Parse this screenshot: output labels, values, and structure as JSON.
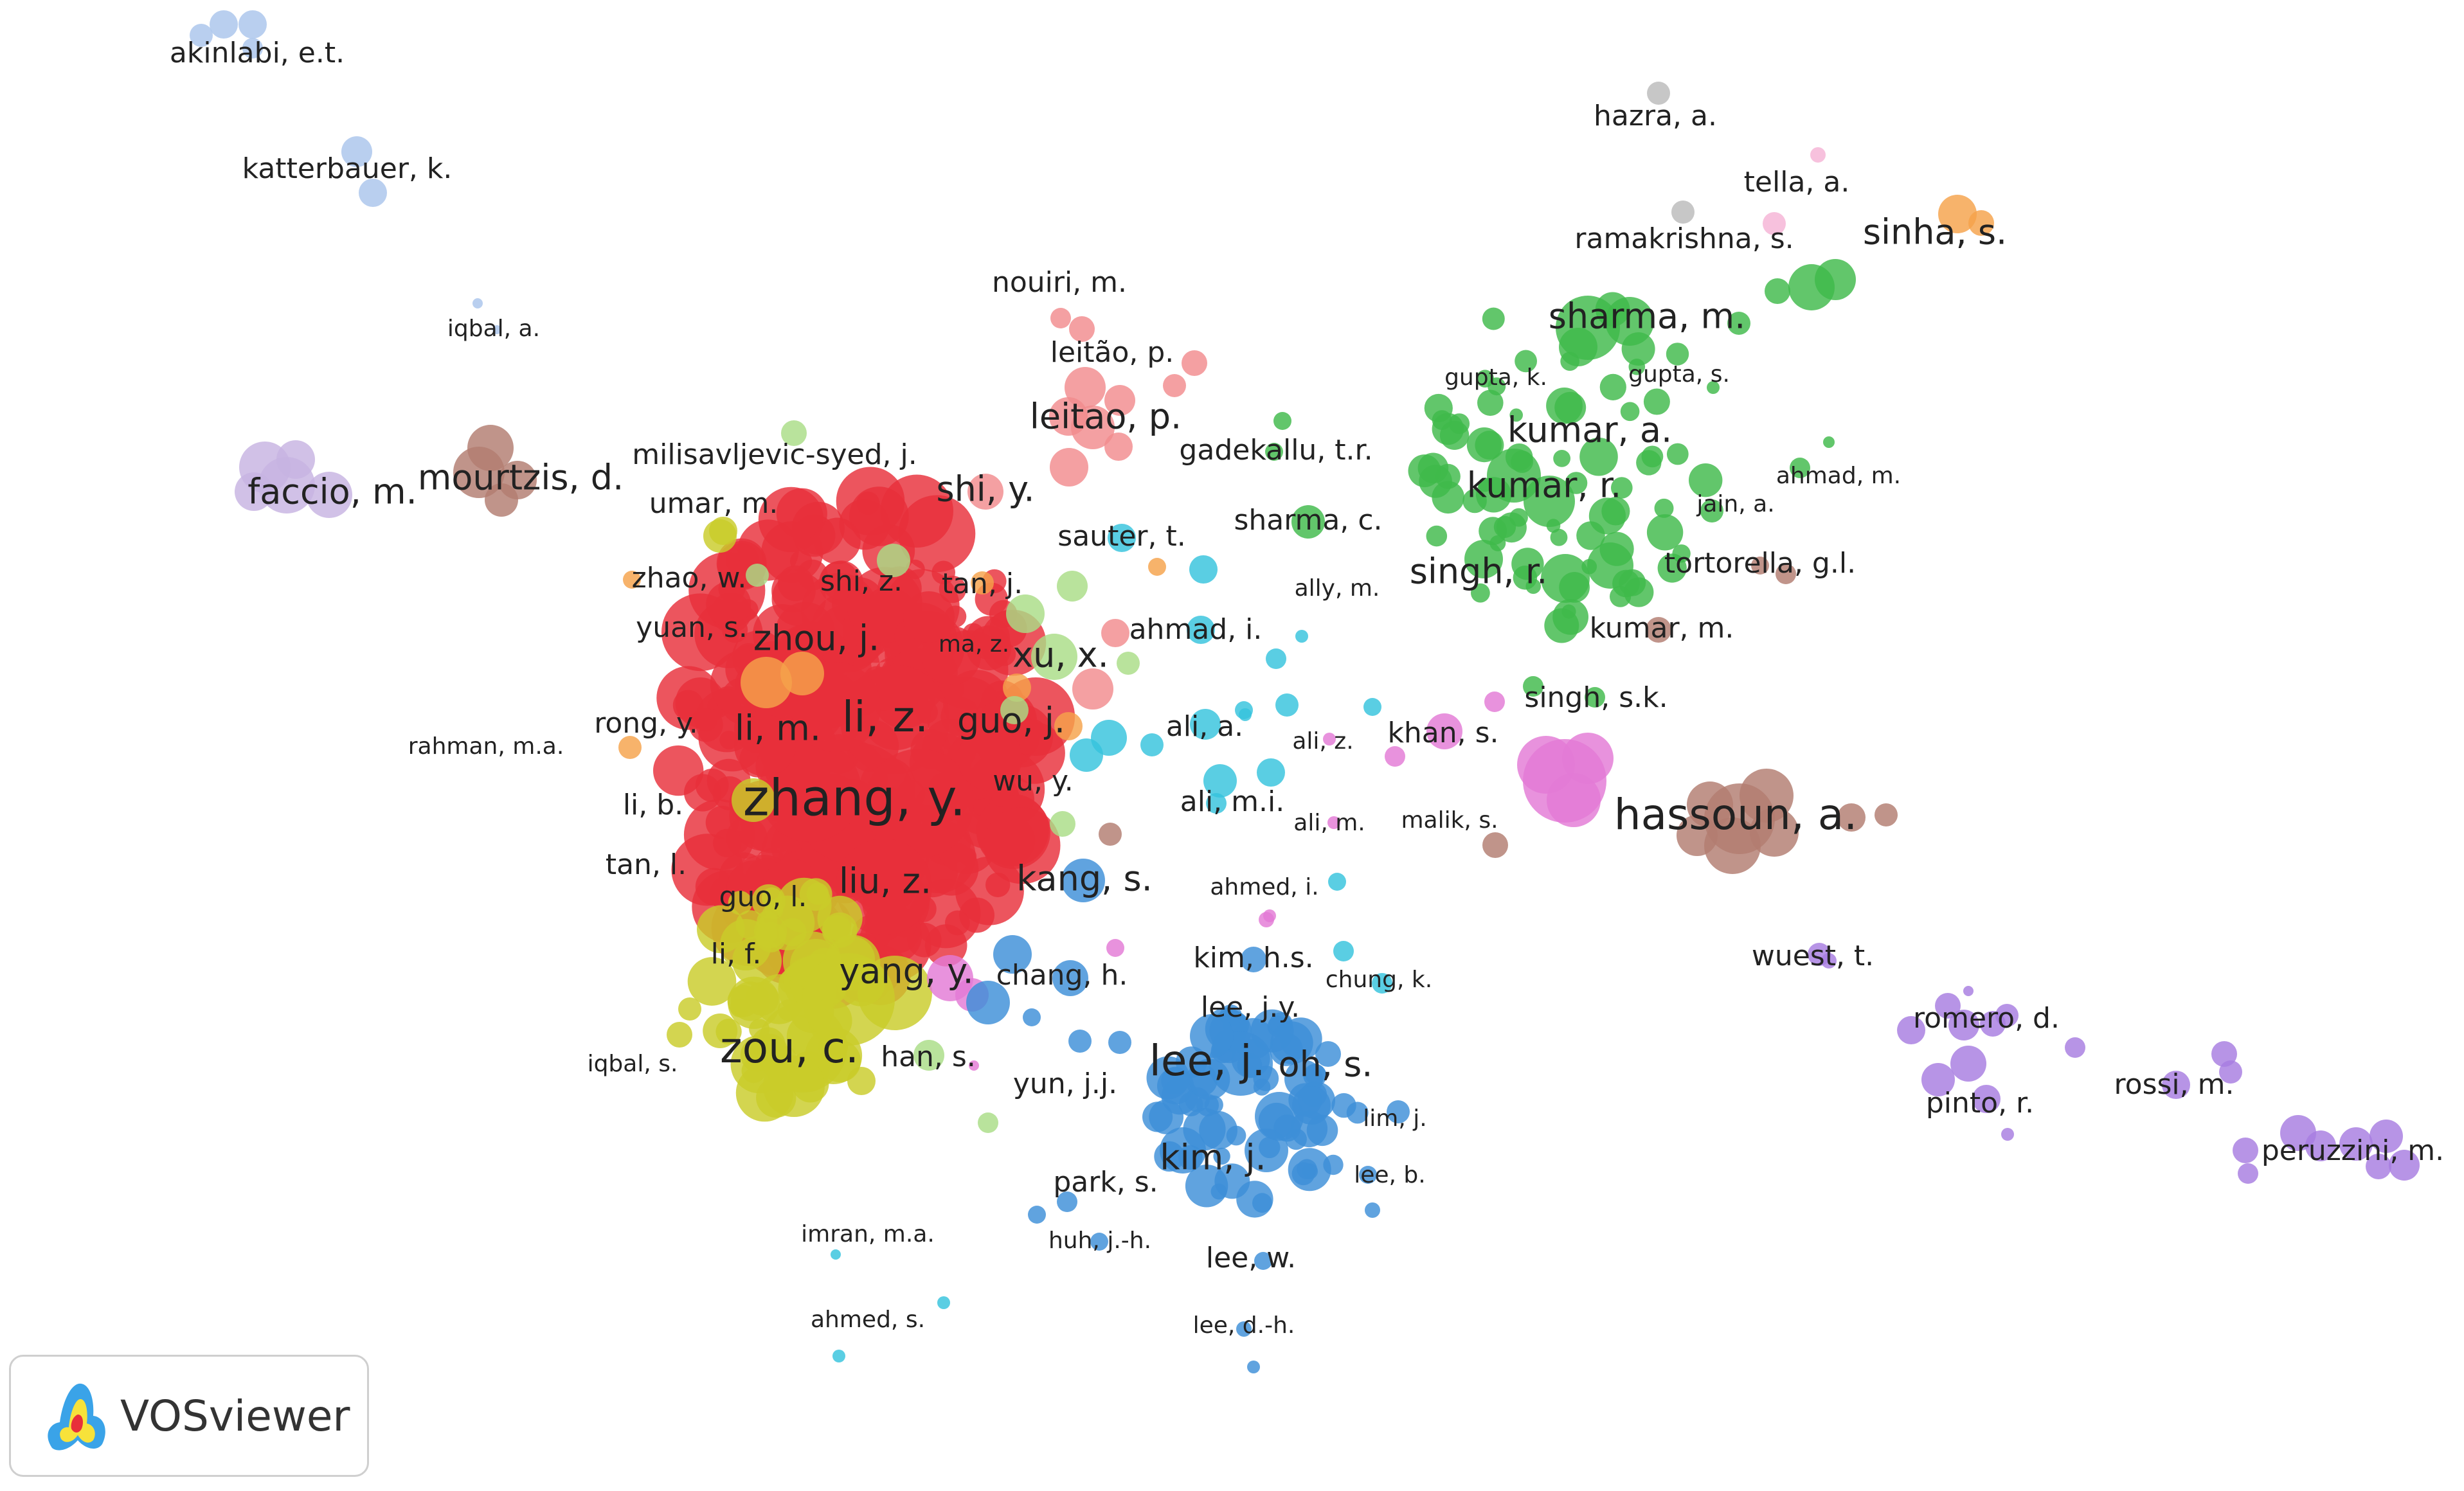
{
  "app": {
    "logo_text": "VOSviewer",
    "logo_icon": "vosviewer-logo-icon"
  },
  "colors": {
    "red": "#e8303a",
    "yellow": "#c9cc2a",
    "green": "#3fb94a",
    "blue": "#3d8fd8",
    "cyan": "#36c3dd",
    "purple": "#a77de0",
    "pink": "#e37ad6",
    "brown": "#b27d70",
    "salmon": "#f28b8e",
    "lightgreen": "#a9dd86",
    "orange": "#f5a24a",
    "lavender": "#c7b3e2",
    "lightblue": "#a9c4ec",
    "gray": "#bbbbbb",
    "lightpink": "#f5b3d6"
  },
  "labels": [
    {
      "text": "akinlabi, e.t.",
      "size": "s"
    },
    {
      "text": "katterbauer, k.",
      "size": "s"
    },
    {
      "text": "iqbal, a.",
      "size": "xs"
    },
    {
      "text": "faccio, m.",
      "size": "m"
    },
    {
      "text": "mourtzis, d.",
      "size": "m"
    },
    {
      "text": "milisavljevic-syed, j.",
      "size": "s"
    },
    {
      "text": "umar, m.",
      "size": "s"
    },
    {
      "text": "zhao, w.",
      "size": "s"
    },
    {
      "text": "yuan, s.",
      "size": "s"
    },
    {
      "text": "rong, y.",
      "size": "s"
    },
    {
      "text": "rahman, m.a.",
      "size": "xs"
    },
    {
      "text": "li, b.",
      "size": "s"
    },
    {
      "text": "tan, l.",
      "size": "s"
    },
    {
      "text": "guo, l.",
      "size": "s"
    },
    {
      "text": "li, f.",
      "size": "s"
    },
    {
      "text": "iqbal, s.",
      "size": "xs"
    },
    {
      "text": "shi, z.",
      "size": "s"
    },
    {
      "text": "tan, j.",
      "size": "s"
    },
    {
      "text": "zhou, j.",
      "size": "m"
    },
    {
      "text": "ma, z.",
      "size": "xs"
    },
    {
      "text": "li, m.",
      "size": "m"
    },
    {
      "text": "li, z.",
      "size": "l"
    },
    {
      "text": "guo, j.",
      "size": "m"
    },
    {
      "text": "xu, x.",
      "size": "m"
    },
    {
      "text": "wu, y.",
      "size": "s"
    },
    {
      "text": "zhang, y.",
      "size": "xl"
    },
    {
      "text": "liu, z.",
      "size": "m"
    },
    {
      "text": "kang, s.",
      "size": "m"
    },
    {
      "text": "yang, y.",
      "size": "m"
    },
    {
      "text": "chang, h.",
      "size": "s"
    },
    {
      "text": "zou, c.",
      "size": "l"
    },
    {
      "text": "han, s.",
      "size": "s"
    },
    {
      "text": "nouiri, m.",
      "size": "s"
    },
    {
      "text": "leitão, p.",
      "size": "s"
    },
    {
      "text": "leitao, p.",
      "size": "m"
    },
    {
      "text": "shi, y.",
      "size": "m"
    },
    {
      "text": "sauter, t.",
      "size": "s"
    },
    {
      "text": "ahmad, i.",
      "size": "s"
    },
    {
      "text": "ali, a.",
      "size": "s"
    },
    {
      "text": "ali, z.",
      "size": "xs"
    },
    {
      "text": "ali, m.i.",
      "size": "s"
    },
    {
      "text": "ali, m.",
      "size": "xs"
    },
    {
      "text": "ahmed, i.",
      "size": "xs"
    },
    {
      "text": "gadekallu, t.r.",
      "size": "s"
    },
    {
      "text": "sharma, c.",
      "size": "s"
    },
    {
      "text": "ally, m.",
      "size": "xs"
    },
    {
      "text": "khan, s.",
      "size": "s"
    },
    {
      "text": "malik, s.",
      "size": "xs"
    },
    {
      "text": "hassoun, a.",
      "size": "l"
    },
    {
      "text": "kim, h.s.",
      "size": "s"
    },
    {
      "text": "chung, k.",
      "size": "xs"
    },
    {
      "text": "lee, j.y.",
      "size": "s"
    },
    {
      "text": "lee, j.",
      "size": "l"
    },
    {
      "text": "oh, s.",
      "size": "m"
    },
    {
      "text": "yun, j.j.",
      "size": "s"
    },
    {
      "text": "lim, j.",
      "size": "xs"
    },
    {
      "text": "kim, j.",
      "size": "m"
    },
    {
      "text": "lee, b.",
      "size": "xs"
    },
    {
      "text": "park, s.",
      "size": "s"
    },
    {
      "text": "huh, j.-h.",
      "size": "xs"
    },
    {
      "text": "lee, w.",
      "size": "s"
    },
    {
      "text": "lee, d.-h.",
      "size": "xs"
    },
    {
      "text": "imran, m.a.",
      "size": "xs"
    },
    {
      "text": "ahmed, s.",
      "size": "xs"
    },
    {
      "text": "hazra, a.",
      "size": "s"
    },
    {
      "text": "tella, a.",
      "size": "s"
    },
    {
      "text": "ramakrishna, s.",
      "size": "s"
    },
    {
      "text": "sinha, s.",
      "size": "m"
    },
    {
      "text": "sharma, m.",
      "size": "m"
    },
    {
      "text": "gupta, k.",
      "size": "xs"
    },
    {
      "text": "gupta, s.",
      "size": "xs"
    },
    {
      "text": "kumar, a.",
      "size": "m"
    },
    {
      "text": "ahmad, m.",
      "size": "xs"
    },
    {
      "text": "kumar, r.",
      "size": "m"
    },
    {
      "text": "jain, a.",
      "size": "xs"
    },
    {
      "text": "singh, r.",
      "size": "m"
    },
    {
      "text": "tortorella, g.l.",
      "size": "s"
    },
    {
      "text": "kumar, m.",
      "size": "s"
    },
    {
      "text": "singh, s.k.",
      "size": "s"
    },
    {
      "text": "wuest, t.",
      "size": "s"
    },
    {
      "text": "romero, d.",
      "size": "s"
    },
    {
      "text": "rossi, m.",
      "size": "s"
    },
    {
      "text": "pinto, r.",
      "size": "s"
    },
    {
      "text": "peruzzini, m.",
      "size": "s"
    }
  ]
}
